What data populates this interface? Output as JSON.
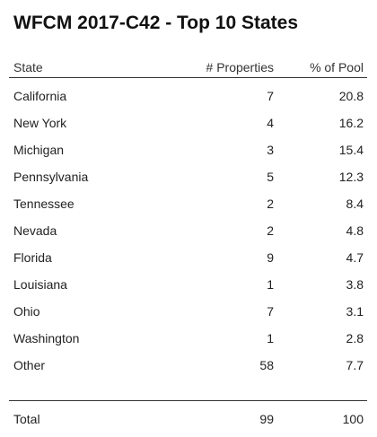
{
  "title": "WFCM 2017-C42 - Top 10 States",
  "columns": {
    "state": "State",
    "properties": "# Properties",
    "pool": "% of Pool"
  },
  "rows": [
    {
      "state": "California",
      "properties": "7",
      "pool": "20.8"
    },
    {
      "state": "New York",
      "properties": "4",
      "pool": "16.2"
    },
    {
      "state": "Michigan",
      "properties": "3",
      "pool": "15.4"
    },
    {
      "state": "Pennsylvania",
      "properties": "5",
      "pool": "12.3"
    },
    {
      "state": "Tennessee",
      "properties": "2",
      "pool": "8.4"
    },
    {
      "state": "Nevada",
      "properties": "2",
      "pool": "4.8"
    },
    {
      "state": "Florida",
      "properties": "9",
      "pool": "4.7"
    },
    {
      "state": "Louisiana",
      "properties": "1",
      "pool": "3.8"
    },
    {
      "state": "Ohio",
      "properties": "7",
      "pool": "3.1"
    },
    {
      "state": "Washington",
      "properties": "1",
      "pool": "2.8"
    },
    {
      "state": "Other",
      "properties": "58",
      "pool": "7.7"
    }
  ],
  "total": {
    "label": "Total",
    "properties": "99",
    "pool": "100"
  }
}
